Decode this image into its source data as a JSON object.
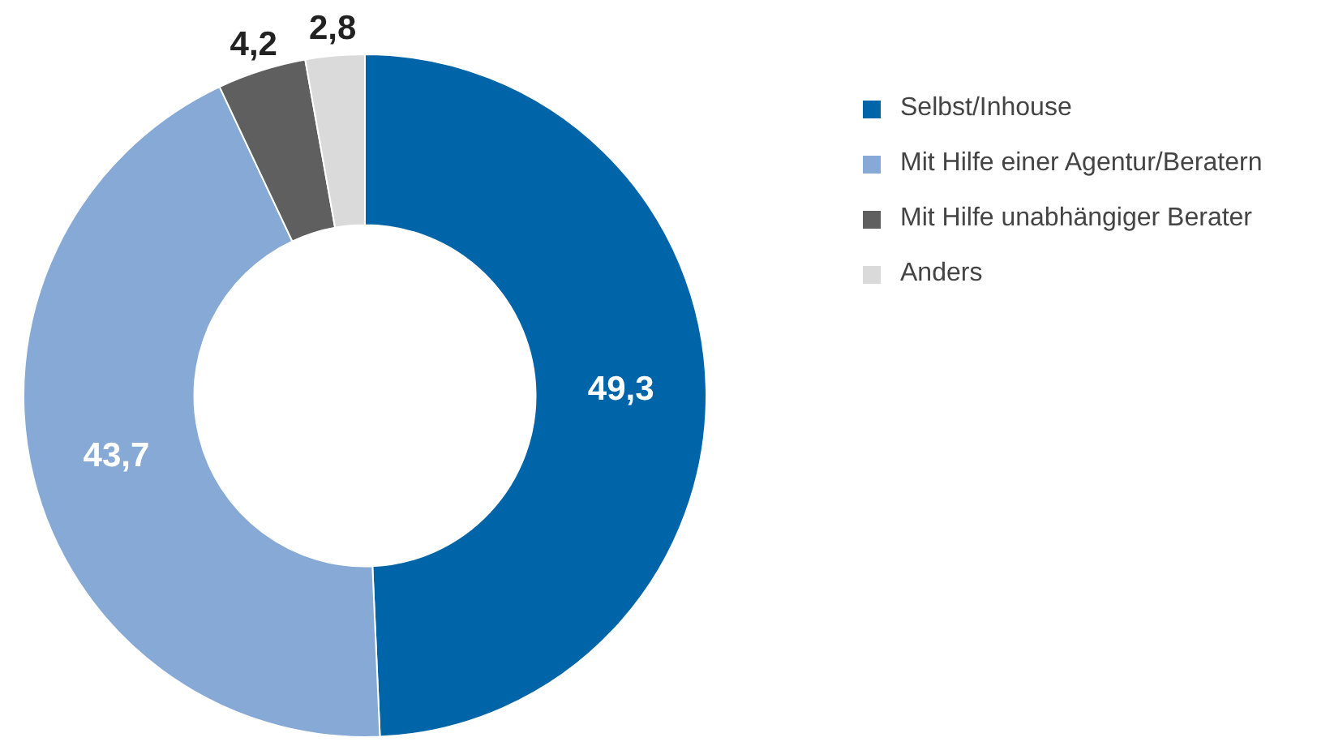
{
  "chart_data": {
    "type": "donut",
    "categories": [
      "Selbst/Inhouse",
      "Mit Hilfe einer Agentur/Beratern",
      "Mit Hilfe unabhängiger Berater",
      "Anders"
    ],
    "values": [
      49.3,
      43.7,
      4.2,
      2.8
    ],
    "colors": [
      "#0065a8",
      "#86a9d5",
      "#5f5f5f",
      "#dadada"
    ],
    "value_labels": [
      "49,3",
      "43,7",
      "4,2",
      "2,8"
    ],
    "legend": "top right"
  }
}
